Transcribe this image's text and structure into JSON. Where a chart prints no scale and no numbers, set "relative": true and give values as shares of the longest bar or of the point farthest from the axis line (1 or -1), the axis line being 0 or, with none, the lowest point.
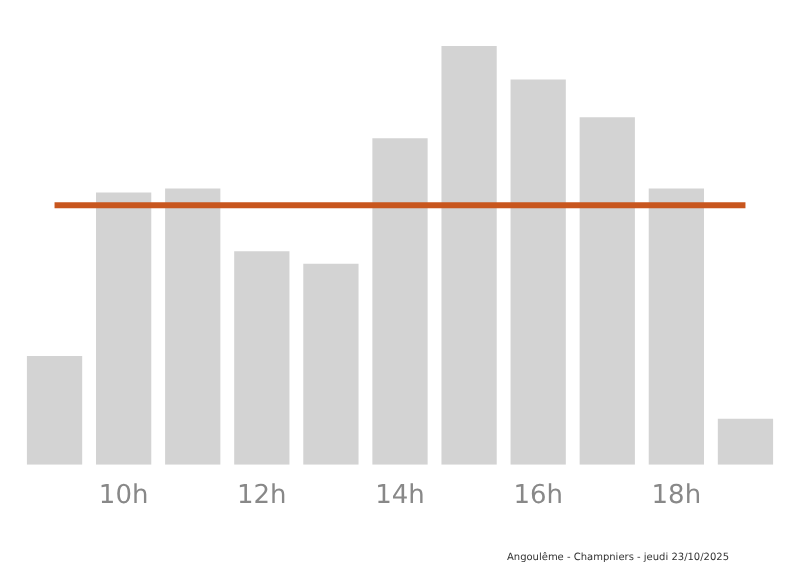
{
  "chart_data": {
    "type": "bar",
    "relative": true,
    "categories": [
      null,
      "10h",
      null,
      "12h",
      null,
      "14h",
      null,
      "16h",
      null,
      "18h",
      null
    ],
    "values": [
      0.26,
      0.65,
      0.66,
      0.51,
      0.48,
      0.78,
      1,
      0.92,
      0.83,
      0.66,
      0.11
    ],
    "color": "#d3d3d3",
    "ref_lines": [
      {
        "axis": "y",
        "value": 0.62,
        "color": "#c8561e"
      }
    ],
    "grid": false,
    "legend": false,
    "annotations": [
      "Angoulême - Champniers - jeudi 23/10/2025"
    ]
  }
}
